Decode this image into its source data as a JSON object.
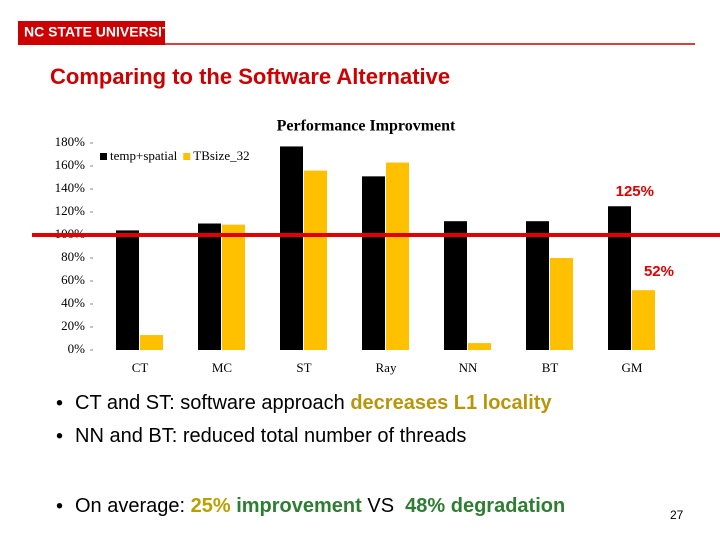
{
  "slide": {
    "logo": "NC STATE UNIVERSITY",
    "title": "Comparing to the Software Alternative",
    "bullets": [
      [
        {
          "text": "CT and ST: software approach ",
          "color": "#000000"
        },
        {
          "text": "decreases L1 locality",
          "color": "#b8960c"
        }
      ],
      [
        {
          "text": "NN and BT: reduced total number of threads",
          "color": "#000000"
        }
      ],
      [
        {
          "text": "On average: ",
          "color": "#000000"
        },
        {
          "text": "25%",
          "color": "#b8a000"
        },
        {
          "text": " improvement ",
          "color": "#2e7d32"
        },
        {
          "text": "VS",
          "color": "#000000"
        },
        {
          "text": "  48% degradation",
          "color": "#2e7d32"
        }
      ]
    ],
    "page_number": "27"
  },
  "chart_data": {
    "type": "bar",
    "title": "Performance Improvment",
    "categories": [
      "CT",
      "MC",
      "ST",
      "Ray",
      "NN",
      "BT",
      "GM"
    ],
    "series": [
      {
        "name": "temp+spatial",
        "color": "#000000",
        "values": [
          104,
          110,
          177,
          151,
          112,
          112,
          125
        ]
      },
      {
        "name": "TBsize_32",
        "color": "#ffc000",
        "values": [
          13,
          109,
          156,
          163,
          6,
          80,
          52
        ]
      }
    ],
    "ylim": [
      0,
      180
    ],
    "yticks": [
      {
        "value": 0,
        "label": "0%"
      },
      {
        "value": 20,
        "label": "20%"
      },
      {
        "value": 40,
        "label": "40%"
      },
      {
        "value": 60,
        "label": "60%"
      },
      {
        "value": 80,
        "label": "80%"
      },
      {
        "value": 100,
        "label": "100%"
      },
      {
        "value": 120,
        "label": "120%"
      },
      {
        "value": 140,
        "label": "140%"
      },
      {
        "value": 160,
        "label": "160%"
      },
      {
        "value": 180,
        "label": "180%"
      }
    ],
    "grid": false,
    "reference_line": {
      "value": 100,
      "color": "#e00000"
    },
    "annotations": [
      "125%",
      "52%"
    ],
    "annotation_color": "#e00000"
  }
}
